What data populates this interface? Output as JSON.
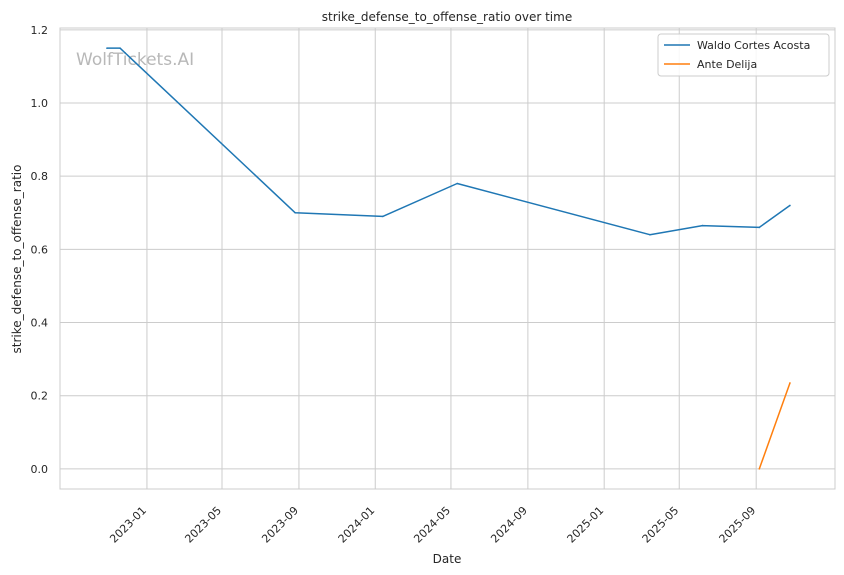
{
  "chart_data": {
    "type": "line",
    "title": "strike_defense_to_offense_ratio over time",
    "xlabel": "Date",
    "ylabel": "strike_defense_to_offense_ratio",
    "x_type": "date",
    "xlim": [
      "2022-08-15",
      "2026-01-05"
    ],
    "ylim": [
      -0.055,
      1.205
    ],
    "x_ticks": [
      "2023-01",
      "2023-05",
      "2023-09",
      "2024-01",
      "2024-05",
      "2024-09",
      "2025-01",
      "2025-05",
      "2025-09"
    ],
    "y_ticks": [
      "0.0",
      "0.2",
      "0.4",
      "0.6",
      "0.8",
      "1.0",
      "1.2"
    ],
    "grid": true,
    "legend_position": "top-right",
    "watermark": "WolfTickets.AI",
    "series": [
      {
        "name": "Waldo Cortes Acosta",
        "color": "#1f77b4",
        "x": [
          "2022-10-29",
          "2022-11-19",
          "2023-08-26",
          "2024-01-13",
          "2024-05-11",
          "2025-03-15",
          "2025-06-07",
          "2025-09-06",
          "2025-10-25"
        ],
        "y": [
          1.15,
          1.15,
          0.7,
          0.69,
          0.78,
          0.64,
          0.665,
          0.66,
          0.72
        ]
      },
      {
        "name": "Ante Delija",
        "color": "#ff7f0e",
        "x": [
          "2025-09-06",
          "2025-10-25"
        ],
        "y": [
          0.0,
          0.235
        ]
      }
    ]
  }
}
